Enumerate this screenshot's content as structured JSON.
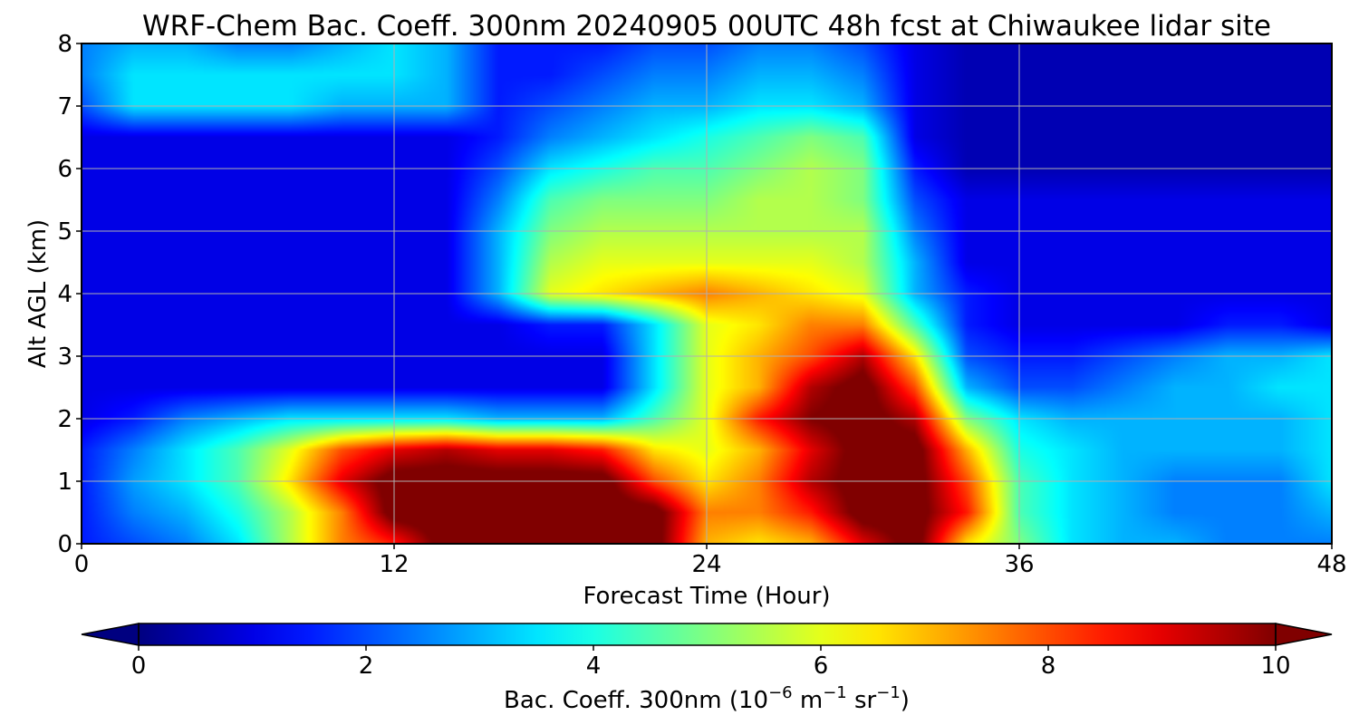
{
  "chart_data": {
    "type": "heatmap",
    "title": "WRF-Chem Bac. Coeff. 300nm  20240905 00UTC 48h fcst at Chiwaukee lidar site",
    "xlabel": "Forecast Time (Hour)",
    "ylabel": "Alt AGL (km)",
    "xlim": [
      0,
      48
    ],
    "ylim": [
      0,
      8
    ],
    "x_ticks": [
      0,
      12,
      24,
      36,
      48
    ],
    "y_ticks": [
      0,
      1,
      2,
      3,
      4,
      5,
      6,
      7,
      8
    ],
    "grid": true,
    "colormap": "jet",
    "colorbar": {
      "label_main": "Bac. Coeff. 300nm  (10",
      "label_exp1": "−6",
      "label_mid": " m",
      "label_exp2": "−1",
      "label_mid2": " sr",
      "label_exp3": "−1",
      "label_end": ")",
      "range": [
        0,
        10
      ],
      "ticks": [
        0,
        2,
        4,
        6,
        8,
        10
      ],
      "extend": "both"
    },
    "grid_hours": [
      0,
      2,
      4,
      6,
      8,
      10,
      12,
      14,
      16,
      18,
      20,
      22,
      24,
      26,
      28,
      30,
      32,
      34,
      36,
      38,
      40,
      42,
      44,
      46,
      48
    ],
    "grid_alt_km": [
      0,
      0.5,
      1,
      1.5,
      2,
      2.5,
      3,
      3.5,
      4,
      4.5,
      5,
      5.5,
      6,
      6.5,
      7,
      7.5,
      8
    ],
    "values": [
      [
        1.5,
        2.0,
        2.5,
        3.5,
        5.5,
        7.5,
        8.5,
        10.5,
        10.5,
        10.5,
        10.5,
        10.5,
        7.0,
        6.5,
        7.0,
        9.0,
        10.5,
        6.5,
        5.0,
        3.5,
        3.0,
        3.0,
        2.5,
        2.5,
        2.5
      ],
      [
        1.5,
        2.5,
        3.0,
        4.0,
        5.5,
        7.5,
        10.5,
        10.5,
        10.5,
        10.5,
        10.5,
        10.5,
        7.5,
        7.5,
        8.5,
        10.5,
        10.5,
        8.5,
        4.5,
        3.5,
        3.0,
        2.5,
        2.5,
        2.5,
        3.0
      ],
      [
        1.5,
        2.8,
        3.5,
        4.5,
        6.5,
        9.0,
        10.5,
        10.5,
        10.5,
        10.5,
        10.5,
        8.0,
        6.5,
        7.5,
        9.5,
        10.5,
        10.5,
        8.0,
        4.5,
        3.5,
        3.0,
        2.5,
        2.5,
        2.5,
        3.5
      ],
      [
        1.5,
        2.5,
        3.5,
        4.5,
        6.0,
        8.0,
        9.0,
        9.5,
        9.0,
        9.0,
        8.5,
        6.5,
        6.0,
        7.0,
        9.0,
        10.5,
        10.5,
        7.0,
        4.0,
        3.5,
        3.0,
        3.0,
        3.0,
        3.0,
        3.5
      ],
      [
        1.0,
        1.5,
        2.5,
        3.0,
        3.5,
        3.5,
        3.5,
        3.5,
        3.0,
        3.0,
        3.0,
        4.5,
        6.0,
        8.5,
        10.0,
        10.5,
        9.5,
        5.0,
        3.5,
        3.0,
        3.0,
        3.0,
        3.0,
        3.0,
        3.5
      ],
      [
        1.0,
        1.0,
        1.0,
        1.0,
        1.0,
        1.0,
        1.0,
        1.0,
        1.0,
        1.0,
        1.0,
        3.5,
        6.0,
        7.0,
        9.5,
        10.5,
        8.0,
        3.0,
        2.0,
        2.0,
        2.5,
        3.0,
        3.0,
        3.5,
        3.5
      ],
      [
        1.0,
        1.0,
        1.0,
        1.0,
        1.0,
        1.0,
        1.0,
        1.0,
        1.0,
        1.0,
        1.0,
        3.5,
        6.0,
        7.0,
        8.0,
        9.5,
        6.5,
        2.0,
        1.5,
        1.5,
        2.0,
        2.5,
        3.0,
        3.0,
        3.5
      ],
      [
        1.0,
        1.0,
        1.0,
        1.0,
        1.0,
        1.0,
        1.0,
        1.0,
        1.0,
        1.5,
        1.5,
        3.5,
        6.0,
        6.5,
        7.5,
        7.5,
        4.5,
        1.5,
        1.0,
        1.0,
        1.0,
        1.0,
        1.5,
        1.5,
        1.0
      ],
      [
        1.0,
        1.0,
        1.0,
        1.0,
        1.0,
        1.0,
        1.0,
        1.0,
        3.0,
        6.0,
        6.5,
        7.0,
        7.5,
        7.0,
        6.5,
        6.0,
        3.0,
        1.5,
        1.0,
        1.0,
        1.0,
        1.0,
        1.0,
        1.0,
        1.0
      ],
      [
        1.0,
        1.0,
        1.0,
        1.0,
        1.0,
        1.0,
        1.0,
        1.0,
        3.0,
        5.5,
        6.0,
        6.0,
        6.0,
        6.0,
        6.0,
        5.5,
        3.0,
        1.0,
        1.0,
        1.0,
        1.0,
        1.0,
        1.0,
        1.0,
        1.0
      ],
      [
        1.0,
        1.0,
        1.0,
        1.0,
        1.0,
        1.0,
        1.0,
        1.0,
        3.0,
        5.0,
        5.5,
        5.5,
        5.5,
        5.5,
        5.5,
        5.5,
        2.5,
        1.0,
        1.0,
        1.0,
        1.0,
        1.0,
        1.0,
        1.0,
        1.0
      ],
      [
        1.0,
        1.0,
        1.0,
        1.0,
        1.0,
        1.0,
        1.0,
        1.0,
        2.5,
        4.5,
        5.0,
        5.0,
        5.0,
        5.5,
        5.5,
        5.0,
        2.0,
        1.0,
        1.0,
        1.0,
        1.0,
        1.0,
        1.0,
        1.0,
        1.0
      ],
      [
        1.0,
        1.0,
        1.0,
        1.0,
        1.0,
        1.0,
        1.0,
        1.0,
        2.0,
        3.5,
        4.0,
        4.5,
        4.5,
        5.0,
        5.5,
        5.0,
        1.5,
        0.5,
        0.5,
        0.5,
        0.5,
        0.5,
        0.5,
        0.5,
        0.5
      ],
      [
        1.0,
        1.0,
        1.0,
        1.0,
        1.0,
        1.0,
        1.0,
        1.0,
        1.5,
        2.5,
        3.0,
        3.5,
        4.0,
        4.5,
        5.0,
        4.5,
        1.0,
        0.5,
        0.5,
        0.5,
        0.5,
        0.5,
        0.5,
        0.5,
        0.5
      ],
      [
        2.0,
        3.5,
        3.5,
        3.5,
        3.5,
        3.0,
        3.0,
        3.0,
        1.5,
        2.0,
        2.5,
        3.0,
        3.0,
        3.5,
        3.5,
        3.0,
        1.0,
        0.5,
        0.5,
        0.5,
        0.5,
        0.5,
        0.5,
        0.5,
        0.5
      ],
      [
        2.5,
        3.5,
        3.5,
        3.5,
        3.5,
        3.5,
        3.5,
        3.0,
        1.5,
        1.5,
        2.0,
        2.5,
        2.5,
        3.0,
        3.0,
        2.5,
        1.0,
        0.5,
        0.5,
        0.5,
        0.5,
        0.5,
        0.5,
        0.5,
        0.5
      ],
      [
        2.5,
        3.0,
        3.0,
        2.5,
        2.5,
        3.0,
        3.5,
        3.0,
        1.5,
        1.5,
        1.5,
        2.0,
        2.0,
        2.5,
        2.5,
        2.0,
        1.0,
        0.5,
        0.5,
        0.5,
        0.5,
        0.5,
        0.5,
        0.5,
        0.5
      ]
    ]
  }
}
